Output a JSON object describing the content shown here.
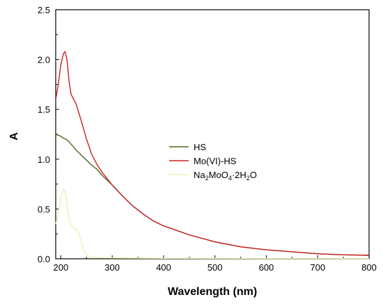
{
  "chart_data": {
    "type": "line",
    "xlabel": "Wavelength (nm)",
    "ylabel": "A",
    "xlim": [
      190,
      800
    ],
    "ylim": [
      0,
      2.5
    ],
    "x_ticks": [
      200,
      300,
      400,
      500,
      600,
      700,
      800
    ],
    "y_ticks": [
      0.0,
      0.5,
      1.0,
      1.5,
      2.0,
      2.5
    ],
    "x_tick_labels": [
      "200",
      "300",
      "400",
      "500",
      "600",
      "700",
      "800"
    ],
    "y_tick_labels": [
      "0.0",
      "0.5",
      "1.0",
      "1.5",
      "2.0",
      "2.5"
    ],
    "grid": false,
    "legend_position": "center",
    "series": [
      {
        "name": "HS",
        "color": "#4a6b1a",
        "points": [
          [
            190,
            1.25
          ],
          [
            195,
            1.24
          ],
          [
            200,
            1.23
          ],
          [
            205,
            1.21
          ],
          [
            210,
            1.2
          ],
          [
            215,
            1.18
          ],
          [
            220,
            1.15
          ],
          [
            230,
            1.09
          ],
          [
            240,
            1.04
          ],
          [
            250,
            0.99
          ],
          [
            260,
            0.94
          ],
          [
            270,
            0.9
          ],
          [
            280,
            0.84
          ],
          [
            300,
            0.74
          ],
          [
            320,
            0.63
          ],
          [
            340,
            0.53
          ],
          [
            360,
            0.45
          ],
          [
            380,
            0.38
          ],
          [
            400,
            0.33
          ],
          [
            450,
            0.24
          ],
          [
            500,
            0.17
          ],
          [
            550,
            0.12
          ],
          [
            600,
            0.09
          ],
          [
            650,
            0.07
          ],
          [
            700,
            0.05
          ],
          [
            750,
            0.04
          ],
          [
            800,
            0.035
          ]
        ]
      },
      {
        "name": "Mo(VI)-HS",
        "color": "#cc1f1f",
        "points": [
          [
            190,
            1.6
          ],
          [
            195,
            1.75
          ],
          [
            200,
            1.95
          ],
          [
            205,
            2.06
          ],
          [
            208,
            2.08
          ],
          [
            212,
            2.0
          ],
          [
            216,
            1.78
          ],
          [
            220,
            1.65
          ],
          [
            225,
            1.6
          ],
          [
            230,
            1.55
          ],
          [
            240,
            1.38
          ],
          [
            250,
            1.2
          ],
          [
            260,
            1.05
          ],
          [
            270,
            0.95
          ],
          [
            280,
            0.87
          ],
          [
            300,
            0.74
          ],
          [
            320,
            0.63
          ],
          [
            340,
            0.53
          ],
          [
            360,
            0.45
          ],
          [
            380,
            0.38
          ],
          [
            400,
            0.33
          ],
          [
            450,
            0.24
          ],
          [
            500,
            0.17
          ],
          [
            550,
            0.12
          ],
          [
            600,
            0.09
          ],
          [
            650,
            0.07
          ],
          [
            700,
            0.05
          ],
          [
            750,
            0.04
          ],
          [
            800,
            0.035
          ]
        ]
      },
      {
        "name": "Na",
        "name_parts": [
          "Na",
          "2",
          "MoO",
          "4",
          "·2H",
          "2",
          "O"
        ],
        "color": "#f0efb8",
        "points": [
          [
            190,
            0.35
          ],
          [
            195,
            0.45
          ],
          [
            200,
            0.62
          ],
          [
            205,
            0.7
          ],
          [
            208,
            0.68
          ],
          [
            212,
            0.55
          ],
          [
            216,
            0.4
          ],
          [
            220,
            0.33
          ],
          [
            225,
            0.31
          ],
          [
            230,
            0.3
          ],
          [
            235,
            0.25
          ],
          [
            240,
            0.16
          ],
          [
            245,
            0.08
          ],
          [
            250,
            0.04
          ],
          [
            260,
            0.015
          ],
          [
            280,
            0.01
          ],
          [
            300,
            0.008
          ],
          [
            400,
            0.005
          ],
          [
            500,
            0.004
          ],
          [
            600,
            0.003
          ],
          [
            700,
            0.003
          ],
          [
            800,
            0.002
          ]
        ]
      }
    ]
  }
}
